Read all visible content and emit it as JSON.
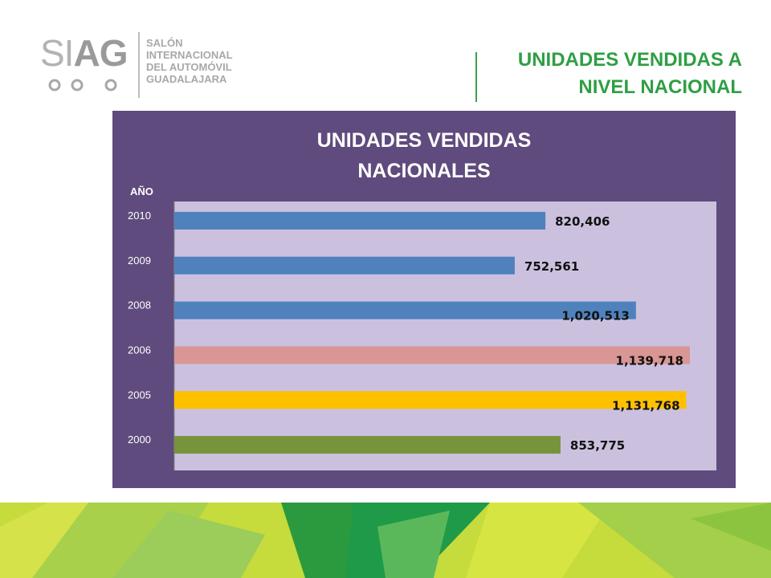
{
  "logo": {
    "mark_light": "SI",
    "mark_bold": "AG",
    "lines": [
      "SALÓN",
      "INTERNACIONAL",
      "DEL AUTOMÓVIL",
      "GUADALAJARA"
    ]
  },
  "header": {
    "title_line1": "UNIDADES VENDIDAS A",
    "title_line2": "NIVEL NACIONAL"
  },
  "colors": {
    "accent_green": "#2f9e44",
    "panel": "#5f4b7d",
    "plot_bg": "#cbc1df"
  },
  "chart_data": {
    "type": "bar",
    "orientation": "horizontal",
    "title_line1": "UNIDADES VENDIDAS",
    "title_line2": "NACIONALES",
    "ylabel": "AÑO",
    "categories": [
      "2010",
      "2009",
      "2008",
      "2006",
      "2005",
      "2000"
    ],
    "values": [
      820406,
      752561,
      1020513,
      1139718,
      1131768,
      853775
    ],
    "value_labels": [
      "820,406",
      "752,561",
      "1,020,513",
      "1,139,718",
      "1,131,768",
      "853,775"
    ],
    "bar_colors": [
      "#4f81bd",
      "#4f81bd",
      "#4f81bd",
      "#d99694",
      "#ffc000",
      "#77933c"
    ],
    "label_position": [
      "outside",
      "outside",
      "inside",
      "inside",
      "inside",
      "outside"
    ],
    "xlim": [
      0,
      1200000
    ],
    "grid": false,
    "legend": "none"
  }
}
